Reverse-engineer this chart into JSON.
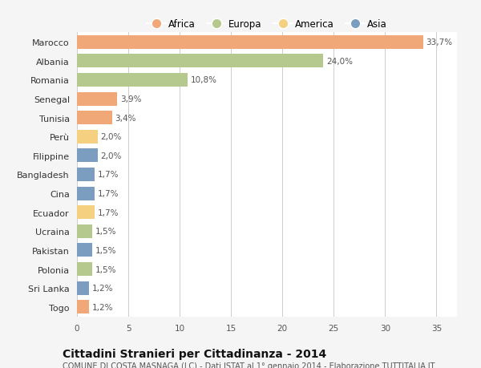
{
  "countries": [
    "Marocco",
    "Albania",
    "Romania",
    "Senegal",
    "Tunisia",
    "Perù",
    "Filippine",
    "Bangladesh",
    "Cina",
    "Ecuador",
    "Ucraina",
    "Pakistan",
    "Polonia",
    "Sri Lanka",
    "Togo"
  ],
  "values": [
    33.7,
    24.0,
    10.8,
    3.9,
    3.4,
    2.0,
    2.0,
    1.7,
    1.7,
    1.7,
    1.5,
    1.5,
    1.5,
    1.2,
    1.2
  ],
  "labels": [
    "33,7%",
    "24,0%",
    "10,8%",
    "3,9%",
    "3,4%",
    "2,0%",
    "2,0%",
    "1,7%",
    "1,7%",
    "1,7%",
    "1,5%",
    "1,5%",
    "1,5%",
    "1,2%",
    "1,2%"
  ],
  "continents": [
    "Africa",
    "Europa",
    "Europa",
    "Africa",
    "Africa",
    "America",
    "Asia",
    "Asia",
    "Asia",
    "America",
    "Europa",
    "Asia",
    "Europa",
    "Asia",
    "Africa"
  ],
  "colors": {
    "Africa": "#F0A878",
    "Europa": "#B5C98E",
    "America": "#F5D080",
    "Asia": "#7B9EC0"
  },
  "legend_order": [
    "Africa",
    "Europa",
    "America",
    "Asia"
  ],
  "title1": "Cittadini Stranieri per Cittadinanza - 2014",
  "title2": "COMUNE DI COSTA MASNAGA (LC) - Dati ISTAT al 1° gennaio 2014 - Elaborazione TUTTITALIA.IT",
  "xlim": [
    0,
    37
  ],
  "xticks": [
    0,
    5,
    10,
    15,
    20,
    25,
    30,
    35
  ],
  "background_color": "#f5f5f5",
  "plot_bg_color": "#ffffff",
  "bar_height": 0.72,
  "label_fontsize": 7.5,
  "ytick_fontsize": 8.0,
  "xtick_fontsize": 7.5,
  "legend_fontsize": 8.5,
  "title1_fontsize": 10,
  "title2_fontsize": 7.0
}
